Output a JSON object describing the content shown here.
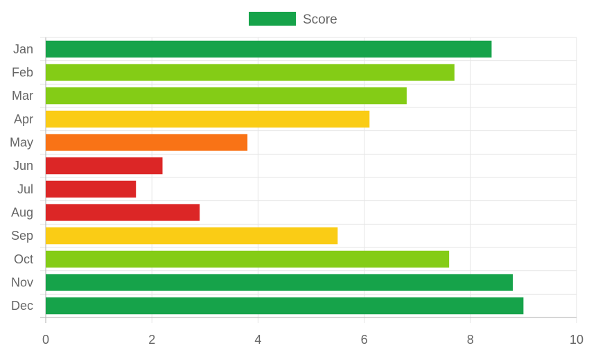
{
  "chart_data": {
    "type": "bar",
    "orientation": "horizontal",
    "categories": [
      "Jan",
      "Feb",
      "Mar",
      "Apr",
      "May",
      "Jun",
      "Jul",
      "Aug",
      "Sep",
      "Oct",
      "Nov",
      "Dec"
    ],
    "series": [
      {
        "name": "Score",
        "values": [
          8.4,
          7.7,
          6.8,
          6.1,
          3.8,
          2.2,
          1.7,
          2.9,
          5.5,
          7.6,
          8.8,
          9.0
        ],
        "colors": [
          "#16a34a",
          "#84cc16",
          "#84cc16",
          "#facc15",
          "#f97316",
          "#dc2626",
          "#dc2626",
          "#dc2626",
          "#facc15",
          "#84cc16",
          "#16a34a",
          "#16a34a"
        ]
      }
    ],
    "xlim": [
      0,
      10
    ],
    "xticks": [
      "0",
      "2",
      "4",
      "6",
      "8",
      "10"
    ],
    "grid": true,
    "legend": {
      "position": "top",
      "label": "Score",
      "color": "#16a34a"
    }
  }
}
